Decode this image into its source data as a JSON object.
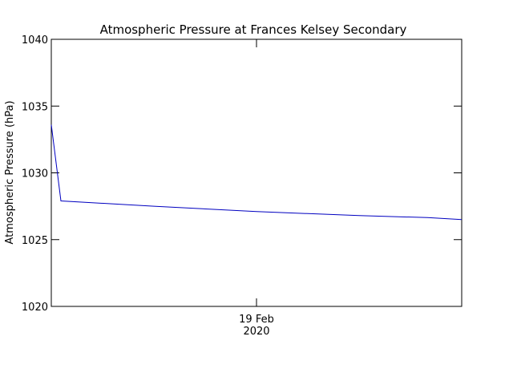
{
  "chart_data": {
    "type": "line",
    "title": "Atmospheric Pressure at Frances Kelsey Secondary",
    "y_label": "Atmospheric Pressure (hPa)",
    "x": [
      0,
      1.125,
      12,
      24,
      36,
      44,
      48
    ],
    "series": [
      {
        "name": "Atmospheric Pressure",
        "color": "#0000c0",
        "values": [
          1033.6,
          1027.9,
          1027.5,
          1027.1,
          1026.8,
          1026.65,
          1026.5
        ]
      }
    ],
    "xlim": [
      0,
      48
    ],
    "xticks": [
      {
        "value": 24,
        "label": "19 Feb\n2020"
      }
    ],
    "ylim": [
      1020,
      1040
    ],
    "yticks": [
      1020,
      1025,
      1030,
      1035,
      1040
    ],
    "grid": false
  }
}
